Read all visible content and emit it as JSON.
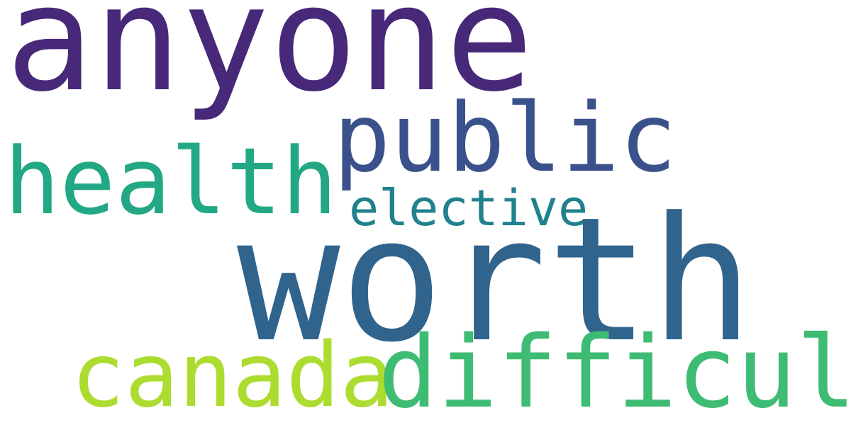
{
  "words": [
    {
      "id": "anyone",
      "text": "anyone",
      "color": "#482878"
    },
    {
      "id": "worth",
      "text": "worth",
      "color": "#31648d"
    },
    {
      "id": "public",
      "text": "public",
      "color": "#3b518b"
    },
    {
      "id": "health",
      "text": "health",
      "color": "#22a884"
    },
    {
      "id": "elective",
      "text": "elective",
      "color": "#21818c"
    },
    {
      "id": "canada",
      "text": "canada",
      "color": "#addc30"
    },
    {
      "id": "difficult",
      "text": "difficult",
      "color": "#3fbc73"
    }
  ]
}
